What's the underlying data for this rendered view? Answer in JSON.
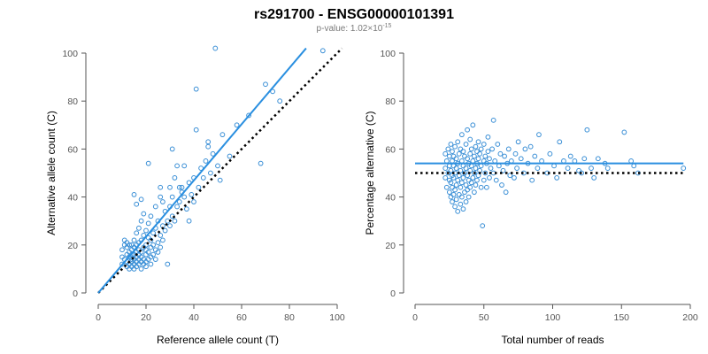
{
  "title": "rs291700 - ENSG00000101391",
  "subtitle": {
    "prefix": "p-value: 1.02×10",
    "exponent": "-15"
  },
  "colors": {
    "points": "#3a8fd6",
    "fit": "#2a8fe0",
    "reference": "#000000",
    "axis": "#555555"
  },
  "chart_data": [
    {
      "type": "scatter",
      "xlabel": "Reference allele count (T)",
      "ylabel": "Alternative allele count (C)",
      "xlim": [
        0,
        100
      ],
      "ylim": [
        0,
        100
      ],
      "xticks": [
        0,
        20,
        40,
        60,
        80,
        100
      ],
      "yticks": [
        0,
        20,
        40,
        60,
        80,
        100
      ],
      "grid": false,
      "fit_line": {
        "x": [
          0,
          87
        ],
        "y": [
          0,
          102
        ]
      },
      "reference_line": {
        "x": [
          0,
          102
        ],
        "y": [
          0,
          102
        ]
      },
      "points": [
        [
          10,
          12
        ],
        [
          10,
          15
        ],
        [
          10,
          18
        ],
        [
          11,
          14
        ],
        [
          11,
          20
        ],
        [
          11,
          22
        ],
        [
          12,
          11
        ],
        [
          12,
          13
        ],
        [
          12,
          16
        ],
        [
          12,
          19
        ],
        [
          12,
          21
        ],
        [
          13,
          10
        ],
        [
          13,
          12
        ],
        [
          13,
          15
        ],
        [
          13,
          17
        ],
        [
          13,
          20
        ],
        [
          14,
          11
        ],
        [
          14,
          13
        ],
        [
          14,
          14
        ],
        [
          14,
          16
        ],
        [
          14,
          18
        ],
        [
          14,
          20
        ],
        [
          15,
          10
        ],
        [
          15,
          12
        ],
        [
          15,
          14
        ],
        [
          15,
          16
        ],
        [
          15,
          19
        ],
        [
          15,
          22
        ],
        [
          16,
          11
        ],
        [
          16,
          13
        ],
        [
          16,
          15
        ],
        [
          16,
          17
        ],
        [
          16,
          20
        ],
        [
          16,
          25
        ],
        [
          17,
          12
        ],
        [
          17,
          14
        ],
        [
          17,
          16
        ],
        [
          17,
          18
        ],
        [
          17,
          21
        ],
        [
          17,
          27
        ],
        [
          18,
          10
        ],
        [
          18,
          13
        ],
        [
          18,
          15
        ],
        [
          18,
          17
        ],
        [
          18,
          22
        ],
        [
          18,
          30
        ],
        [
          19,
          12
        ],
        [
          19,
          14
        ],
        [
          19,
          19
        ],
        [
          19,
          24
        ],
        [
          19,
          33
        ],
        [
          20,
          11
        ],
        [
          20,
          13
        ],
        [
          20,
          16
        ],
        [
          20,
          18
        ],
        [
          20,
          20
        ],
        [
          20,
          26
        ],
        [
          21,
          14
        ],
        [
          21,
          17
        ],
        [
          21,
          23
        ],
        [
          21,
          29
        ],
        [
          22,
          12
        ],
        [
          22,
          15
        ],
        [
          22,
          19
        ],
        [
          22,
          22
        ],
        [
          22,
          32
        ],
        [
          23,
          16
        ],
        [
          23,
          20
        ],
        [
          23,
          25
        ],
        [
          24,
          14
        ],
        [
          24,
          18
        ],
        [
          24,
          27
        ],
        [
          24,
          36
        ],
        [
          25,
          17
        ],
        [
          25,
          21
        ],
        [
          25,
          30
        ],
        [
          26,
          19
        ],
        [
          26,
          24
        ],
        [
          26,
          40
        ],
        [
          27,
          22
        ],
        [
          27,
          28
        ],
        [
          28,
          26
        ],
        [
          28,
          34
        ],
        [
          29,
          12
        ],
        [
          29,
          30
        ],
        [
          30,
          28
        ],
        [
          30,
          36
        ],
        [
          30,
          44
        ],
        [
          31,
          32
        ],
        [
          31,
          40
        ],
        [
          32,
          30
        ],
        [
          32,
          48
        ],
        [
          33,
          36
        ],
        [
          33,
          53
        ],
        [
          34,
          38
        ],
        [
          34,
          44
        ],
        [
          35,
          42
        ],
        [
          36,
          40
        ],
        [
          36,
          53
        ],
        [
          37,
          35
        ],
        [
          38,
          30
        ],
        [
          38,
          46
        ],
        [
          39,
          41
        ],
        [
          40,
          38
        ],
        [
          40,
          48
        ],
        [
          41,
          68
        ],
        [
          41,
          85
        ],
        [
          42,
          44
        ],
        [
          43,
          52
        ],
        [
          44,
          48
        ],
        [
          45,
          55
        ],
        [
          46,
          61
        ],
        [
          47,
          50
        ],
        [
          48,
          58
        ],
        [
          49,
          102
        ],
        [
          50,
          53
        ],
        [
          52,
          66
        ],
        [
          55,
          57
        ],
        [
          58,
          70
        ],
        [
          63,
          74
        ],
        [
          68,
          54
        ],
        [
          70,
          87
        ],
        [
          73,
          84
        ],
        [
          76,
          80
        ],
        [
          94,
          101
        ],
        [
          15,
          41
        ],
        [
          16,
          37
        ],
        [
          18,
          39
        ],
        [
          21,
          54
        ],
        [
          26,
          44
        ],
        [
          27,
          38
        ],
        [
          31,
          60
        ],
        [
          35,
          44
        ],
        [
          46,
          63
        ],
        [
          51,
          47
        ]
      ]
    },
    {
      "type": "scatter",
      "xlabel": "Total number of reads",
      "ylabel": "Percentage alternative (C)",
      "xlim": [
        0,
        200
      ],
      "ylim": [
        0,
        100
      ],
      "xticks": [
        0,
        50,
        100,
        150,
        200
      ],
      "yticks": [
        0,
        20,
        40,
        60,
        80,
        100
      ],
      "grid": false,
      "fit_line": {
        "x": [
          0,
          195
        ],
        "y": [
          54,
          54
        ]
      },
      "reference_line": {
        "x": [
          0,
          195
        ],
        "y": [
          50,
          50
        ]
      },
      "points": [
        [
          22,
          48
        ],
        [
          22,
          52
        ],
        [
          22,
          58
        ],
        [
          23,
          44
        ],
        [
          23,
          55
        ],
        [
          24,
          50
        ],
        [
          24,
          60
        ],
        [
          25,
          42
        ],
        [
          25,
          47
        ],
        [
          25,
          53
        ],
        [
          25,
          57
        ],
        [
          26,
          40
        ],
        [
          26,
          46
        ],
        [
          26,
          51
        ],
        [
          26,
          62
        ],
        [
          27,
          38
        ],
        [
          27,
          44
        ],
        [
          27,
          49
        ],
        [
          27,
          55
        ],
        [
          27,
          59
        ],
        [
          28,
          41
        ],
        [
          28,
          48
        ],
        [
          28,
          53
        ],
        [
          28,
          57
        ],
        [
          29,
          36
        ],
        [
          29,
          43
        ],
        [
          29,
          50
        ],
        [
          29,
          61
        ],
        [
          30,
          39
        ],
        [
          30,
          45
        ],
        [
          30,
          52
        ],
        [
          30,
          56
        ],
        [
          31,
          34
        ],
        [
          31,
          47
        ],
        [
          31,
          54
        ],
        [
          31,
          63
        ],
        [
          32,
          41
        ],
        [
          32,
          49
        ],
        [
          32,
          58
        ],
        [
          33,
          37
        ],
        [
          33,
          44
        ],
        [
          33,
          51
        ],
        [
          33,
          60
        ],
        [
          34,
          40
        ],
        [
          34,
          46
        ],
        [
          34,
          55
        ],
        [
          34,
          66
        ],
        [
          35,
          35
        ],
        [
          35,
          48
        ],
        [
          35,
          53
        ],
        [
          35,
          59
        ],
        [
          36,
          42
        ],
        [
          36,
          50
        ],
        [
          36,
          57
        ],
        [
          37,
          38
        ],
        [
          37,
          45
        ],
        [
          37,
          52
        ],
        [
          37,
          62
        ],
        [
          38,
          43
        ],
        [
          38,
          49
        ],
        [
          38,
          56
        ],
        [
          38,
          68
        ],
        [
          39,
          40
        ],
        [
          39,
          47
        ],
        [
          39,
          54
        ],
        [
          40,
          44
        ],
        [
          40,
          51
        ],
        [
          40,
          58
        ],
        [
          40,
          64
        ],
        [
          41,
          46
        ],
        [
          41,
          53
        ],
        [
          41,
          60
        ],
        [
          42,
          48
        ],
        [
          42,
          55
        ],
        [
          42,
          70
        ],
        [
          43,
          42
        ],
        [
          43,
          50
        ],
        [
          43,
          57
        ],
        [
          44,
          45
        ],
        [
          44,
          52
        ],
        [
          44,
          61
        ],
        [
          45,
          47
        ],
        [
          45,
          54
        ],
        [
          45,
          59
        ],
        [
          46,
          49
        ],
        [
          46,
          56
        ],
        [
          46,
          63
        ],
        [
          47,
          51
        ],
        [
          47,
          58
        ],
        [
          48,
          44
        ],
        [
          48,
          53
        ],
        [
          48,
          60
        ],
        [
          49,
          28
        ],
        [
          50,
          47
        ],
        [
          50,
          55
        ],
        [
          50,
          62
        ],
        [
          51,
          50
        ],
        [
          51,
          57
        ],
        [
          52,
          44
        ],
        [
          52,
          54
        ],
        [
          53,
          59
        ],
        [
          53,
          65
        ],
        [
          54,
          48
        ],
        [
          54,
          56
        ],
        [
          55,
          52
        ],
        [
          56,
          60
        ],
        [
          57,
          50
        ],
        [
          57,
          72
        ],
        [
          58,
          55
        ],
        [
          59,
          47
        ],
        [
          60,
          62
        ],
        [
          61,
          53
        ],
        [
          62,
          58
        ],
        [
          63,
          45
        ],
        [
          64,
          51
        ],
        [
          65,
          57
        ],
        [
          66,
          42
        ],
        [
          67,
          54
        ],
        [
          68,
          60
        ],
        [
          69,
          49
        ],
        [
          70,
          55
        ],
        [
          72,
          48
        ],
        [
          73,
          58
        ],
        [
          74,
          52
        ],
        [
          75,
          63
        ],
        [
          77,
          56
        ],
        [
          79,
          50
        ],
        [
          80,
          60
        ],
        [
          82,
          54
        ],
        [
          84,
          61
        ],
        [
          85,
          47
        ],
        [
          87,
          57
        ],
        [
          89,
          52
        ],
        [
          90,
          66
        ],
        [
          92,
          55
        ],
        [
          96,
          50
        ],
        [
          98,
          58
        ],
        [
          101,
          53
        ],
        [
          103,
          48
        ],
        [
          105,
          63
        ],
        [
          108,
          55
        ],
        [
          111,
          52
        ],
        [
          113,
          57
        ],
        [
          116,
          55
        ],
        [
          119,
          51
        ],
        [
          121,
          50
        ],
        [
          123,
          56
        ],
        [
          125,
          68
        ],
        [
          128,
          52
        ],
        [
          130,
          48
        ],
        [
          133,
          56
        ],
        [
          138,
          54
        ],
        [
          140,
          52
        ],
        [
          152,
          67
        ],
        [
          157,
          55
        ],
        [
          159,
          53
        ],
        [
          162,
          50
        ],
        [
          195,
          52
        ]
      ]
    }
  ]
}
